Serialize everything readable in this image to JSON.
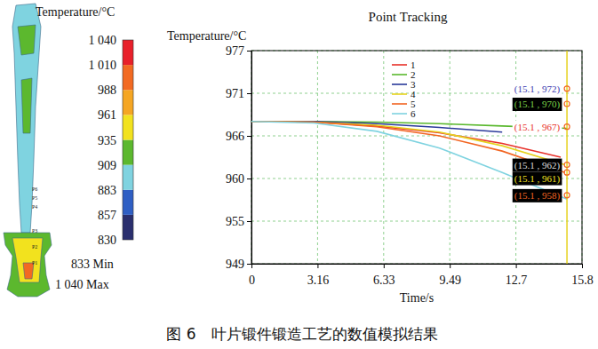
{
  "chart_data": {
    "type": "line",
    "title": "Point Tracking",
    "caption": "图 6　叶片锻件锻造工艺的数值模拟结果",
    "xlabel": "Time/s",
    "ylabel": "Temperature/°C",
    "xlim": [
      0,
      15.82
    ],
    "xticks": [
      0,
      {
        "value": 3.164,
        "label": "3.16"
      },
      {
        "value": 6.328,
        "label": "6.33"
      },
      {
        "value": 9.492,
        "label": "9.49"
      },
      {
        "value": 12.656,
        "label": "12.7"
      },
      {
        "value": 15.82,
        "label": "15.8"
      }
    ],
    "ylim": [
      949,
      977
    ],
    "yticks": [
      949,
      {
        "value": 954.6,
        "label": "955"
      },
      {
        "value": 960.2,
        "label": "960"
      },
      {
        "value": 965.8,
        "label": "966"
      },
      {
        "value": 971.4,
        "label": "971"
      },
      977
    ],
    "grid": true,
    "legend": "top",
    "series": [
      {
        "name": "1",
        "color": "#e8312a",
        "x": [
          0,
          3,
          6,
          9,
          12,
          14.8
        ],
        "values": [
          967.7,
          967.6,
          967.1,
          966.2,
          964.8,
          963.0
        ]
      },
      {
        "name": "2",
        "color": "#5ab82e",
        "x": [
          0,
          3,
          6,
          9,
          12,
          15.1
        ],
        "values": [
          967.7,
          967.7,
          967.6,
          967.4,
          967.1,
          966.8
        ]
      },
      {
        "name": "3",
        "color": "#2a3a9a",
        "x": [
          0,
          3,
          6,
          9,
          12
        ],
        "values": [
          967.7,
          967.7,
          967.4,
          966.9,
          966.3
        ]
      },
      {
        "name": "4",
        "color": "#e6d21e",
        "x": [
          0,
          3,
          6,
          9,
          12,
          15
        ],
        "values": [
          967.7,
          967.6,
          967.2,
          966.3,
          964.5,
          962.0
        ]
      },
      {
        "name": "5",
        "color": "#f26522",
        "x": [
          0,
          3,
          6,
          9,
          12,
          15
        ],
        "values": [
          967.7,
          967.6,
          967.0,
          965.8,
          963.8,
          961.0
        ]
      },
      {
        "name": "6",
        "color": "#7fd3e0",
        "x": [
          0,
          3,
          6,
          9,
          12,
          15.1
        ],
        "values": [
          967.7,
          967.5,
          966.4,
          964.2,
          961.0,
          957.5
        ]
      }
    ],
    "annotations": [
      {
        "x": 15.1,
        "y": 972,
        "label": "(15.1 , 972)",
        "color": "#3a3ab0",
        "background": "#ffffff"
      },
      {
        "x": 15.1,
        "y": 970,
        "label": "(15.1 , 970)",
        "color": "#7cd64a",
        "background": "#000000"
      },
      {
        "x": 15.1,
        "y": 967,
        "label": "(15.1 , 967)",
        "color": "#e8312a",
        "background": "#ffffff"
      },
      {
        "x": 15.1,
        "y": 962,
        "label": "(15.1 , 962)",
        "color": "#dcdcdc",
        "background": "#000000"
      },
      {
        "x": 15.1,
        "y": 961,
        "label": "(15.1 , 961)",
        "color": "#f0e020",
        "background": "#000000"
      },
      {
        "x": 15.1,
        "y": 958,
        "label": "(15.1 , 958)",
        "color": "#f26522",
        "background": "#000000"
      }
    ],
    "colorbar": {
      "title": "Temperature/°C",
      "range": [
        830,
        1040
      ],
      "ticks": [
        {
          "value": 1040,
          "label": "1 040"
        },
        {
          "value": 1013.75,
          "label": "1 010"
        },
        {
          "value": 987.5,
          "label": "988"
        },
        {
          "value": 961.25,
          "label": "961"
        },
        935,
        {
          "value": 908.75,
          "label": "909"
        },
        {
          "value": 882.5,
          "label": "883"
        },
        {
          "value": 856.25,
          "label": "857"
        },
        830
      ],
      "colors": [
        "#2a2f6e",
        "#2f5fc4",
        "#7fd3e0",
        "#5cb82e",
        "#f2e21e",
        "#f5a623",
        "#f26a22",
        "#e8202a"
      ],
      "min_label": "833 Min",
      "max_label": "1 040 Max"
    },
    "probe_labels": [
      "P6",
      "P5",
      "P4",
      "P3",
      "P2",
      "P1"
    ]
  }
}
